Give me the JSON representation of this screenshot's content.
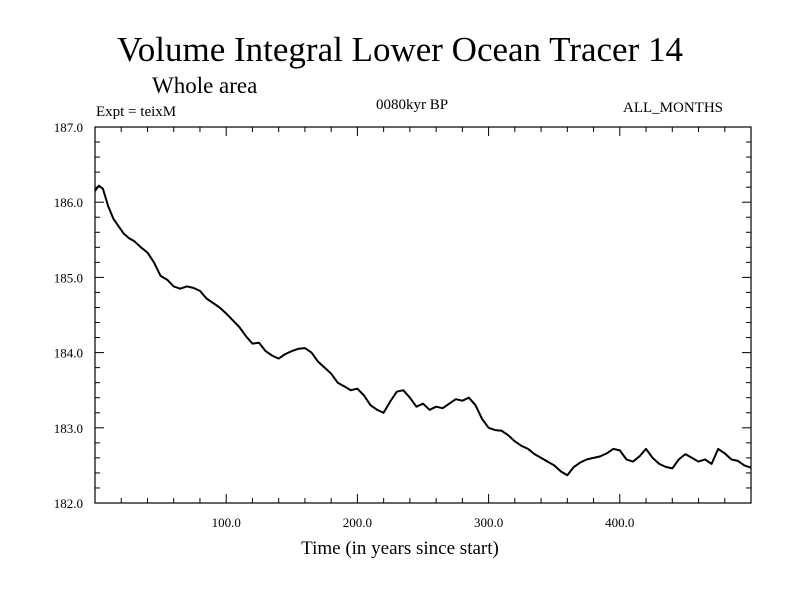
{
  "chart_data": {
    "type": "line",
    "title": "Volume Integral Lower Ocean Tracer 14",
    "subtitle": "Whole area",
    "annotations": {
      "experiment": "Expt = teixM",
      "period": "0080kyr BP",
      "months": "ALL_MONTHS"
    },
    "xlabel": "Time (in years since start)",
    "ylabel": "",
    "xlim": [
      0,
      500
    ],
    "ylim": [
      182.0,
      187.0
    ],
    "x_ticks": [
      100,
      200,
      300,
      400
    ],
    "x_tick_labels": [
      "100.0",
      "200.0",
      "300.0",
      "400.0"
    ],
    "y_ticks": [
      182,
      183,
      184,
      185,
      186,
      187
    ],
    "y_tick_labels": [
      "182.0",
      "183.0",
      "184.0",
      "185.0",
      "186.0",
      "187.0"
    ],
    "grid": false,
    "series": [
      {
        "color": "#000000",
        "x": [
          0,
          3,
          6,
          10,
          14,
          18,
          22,
          26,
          30,
          35,
          40,
          45,
          50,
          55,
          60,
          65,
          70,
          75,
          80,
          85,
          90,
          95,
          100,
          105,
          110,
          115,
          120,
          125,
          130,
          135,
          140,
          145,
          150,
          155,
          160,
          165,
          170,
          175,
          180,
          185,
          190,
          195,
          200,
          205,
          210,
          215,
          220,
          225,
          230,
          235,
          240,
          245,
          250,
          255,
          260,
          265,
          270,
          275,
          280,
          285,
          290,
          295,
          300,
          305,
          310,
          315,
          320,
          325,
          330,
          335,
          340,
          345,
          350,
          355,
          360,
          365,
          370,
          375,
          380,
          385,
          390,
          395,
          400,
          405,
          410,
          415,
          420,
          425,
          430,
          435,
          440,
          445,
          450,
          455,
          460,
          465,
          470,
          475,
          480,
          485,
          490,
          495,
          500
        ],
        "y": [
          186.15,
          186.22,
          186.18,
          185.95,
          185.78,
          185.68,
          185.58,
          185.52,
          185.48,
          185.4,
          185.33,
          185.2,
          185.02,
          184.97,
          184.88,
          184.85,
          184.88,
          184.86,
          184.82,
          184.72,
          184.66,
          184.6,
          184.52,
          184.43,
          184.34,
          184.22,
          184.12,
          184.13,
          184.02,
          183.96,
          183.92,
          183.98,
          184.02,
          184.05,
          184.06,
          184.0,
          183.88,
          183.8,
          183.72,
          183.6,
          183.55,
          183.5,
          183.52,
          183.43,
          183.3,
          183.24,
          183.2,
          183.35,
          183.48,
          183.5,
          183.4,
          183.28,
          183.32,
          183.24,
          183.28,
          183.26,
          183.32,
          183.38,
          183.36,
          183.4,
          183.3,
          183.12,
          183.0,
          182.97,
          182.96,
          182.9,
          182.82,
          182.76,
          182.72,
          182.65,
          182.6,
          182.55,
          182.5,
          182.42,
          182.37,
          182.48,
          182.54,
          182.58,
          182.6,
          182.62,
          182.66,
          182.72,
          182.7,
          182.58,
          182.55,
          182.62,
          182.72,
          182.6,
          182.52,
          182.48,
          182.46,
          182.58,
          182.65,
          182.6,
          182.55,
          182.58,
          182.52,
          182.72,
          182.66,
          182.58,
          182.56,
          182.5,
          182.47
        ]
      }
    ]
  }
}
